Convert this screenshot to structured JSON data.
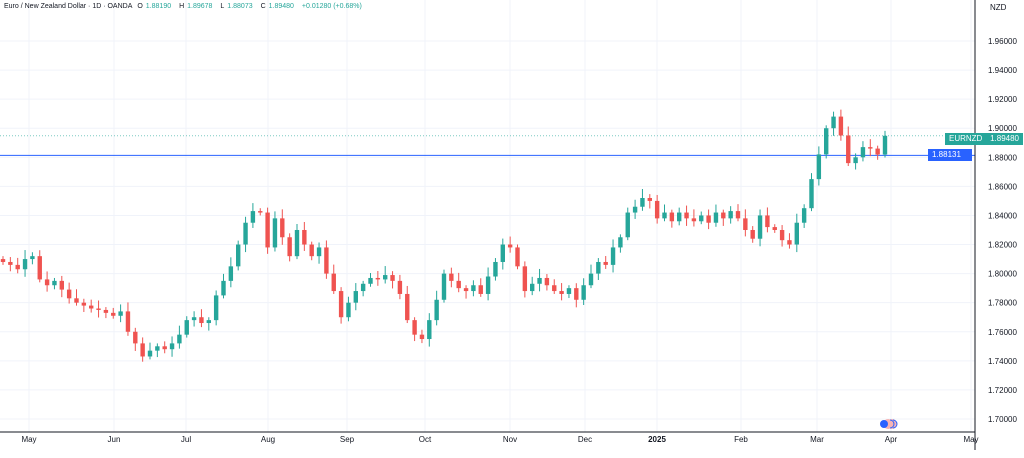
{
  "legend": {
    "symbol": "Euro / New Zealand Dollar · 1D · OANDA",
    "open_label": "O",
    "open": "1.88190",
    "high_label": "H",
    "high": "1.89678",
    "low_label": "L",
    "low": "1.88073",
    "close_label": "C",
    "close": "1.89480",
    "change": "+0.01280 (+0.68%)"
  },
  "price_axis": {
    "currency": "NZD"
  },
  "tags": {
    "symbol": "EURNZD",
    "last_price": "1.89480",
    "line_price": "1.88131"
  },
  "colors": {
    "up": "#26a69a",
    "down": "#ef5350",
    "price_line": "#2962ff",
    "grid": "#f0f3fa"
  },
  "chart_data": {
    "type": "candlestick",
    "title": "Euro / New Zealand Dollar · 1D · OANDA",
    "ylim": [
      1.69,
      1.975
    ],
    "y_ticks": [
      "1.70000",
      "1.72000",
      "1.74000",
      "1.76000",
      "1.78000",
      "1.80000",
      "1.82000",
      "1.84000",
      "1.86000",
      "1.88000",
      "1.90000",
      "1.92000",
      "1.94000",
      "1.96000"
    ],
    "x_ticks": [
      "May",
      "Jun",
      "Jul",
      "Aug",
      "Sep",
      "Oct",
      "Nov",
      "Dec",
      "2025",
      "Feb",
      "Mar",
      "Apr",
      "May"
    ],
    "horizontal_line": 1.88131,
    "closes": [
      1.808,
      1.806,
      1.803,
      1.81,
      1.812,
      1.796,
      1.792,
      1.795,
      1.789,
      1.783,
      1.78,
      1.778,
      1.776,
      1.775,
      1.773,
      1.771,
      1.774,
      1.76,
      1.752,
      1.743,
      1.747,
      1.75,
      1.748,
      1.752,
      1.758,
      1.768,
      1.77,
      1.766,
      1.768,
      1.785,
      1.795,
      1.805,
      1.82,
      1.835,
      1.843,
      1.842,
      1.818,
      1.838,
      1.825,
      1.812,
      1.83,
      1.82,
      1.812,
      1.818,
      1.8,
      1.788,
      1.77,
      1.78,
      1.788,
      1.793,
      1.797,
      1.796,
      1.799,
      1.795,
      1.786,
      1.768,
      1.758,
      1.755,
      1.768,
      1.782,
      1.8,
      1.795,
      1.79,
      1.788,
      1.792,
      1.786,
      1.798,
      1.808,
      1.82,
      1.818,
      1.805,
      1.788,
      1.793,
      1.797,
      1.792,
      1.788,
      1.786,
      1.79,
      1.782,
      1.792,
      1.8,
      1.808,
      1.806,
      1.818,
      1.825,
      1.842,
      1.846,
      1.852,
      1.85,
      1.838,
      1.842,
      1.836,
      1.842,
      1.838,
      1.836,
      1.84,
      1.835,
      1.842,
      1.838,
      1.843,
      1.838,
      1.83,
      1.824,
      1.84,
      1.832,
      1.83,
      1.823,
      1.82,
      1.835,
      1.845,
      1.865,
      1.882,
      1.9,
      1.908,
      1.895,
      1.876,
      1.88,
      1.887,
      1.886,
      1.8819,
      1.8948
    ]
  }
}
